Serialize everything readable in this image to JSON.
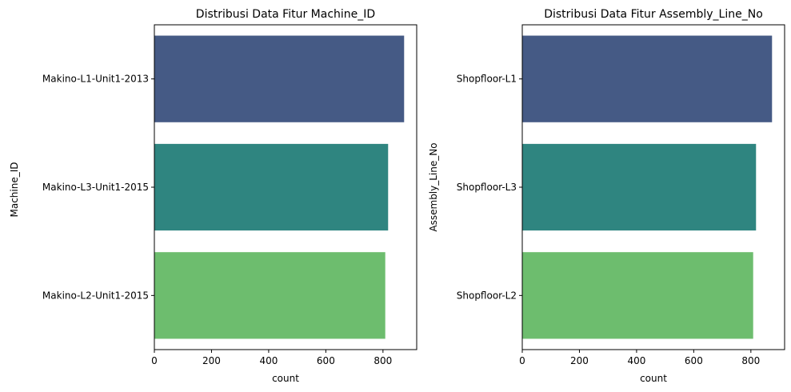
{
  "chart_data": [
    {
      "type": "bar",
      "orientation": "horizontal",
      "title": "Distribusi Data Fitur Machine_ID",
      "xlabel": "count",
      "ylabel": "Machine_ID",
      "categories": [
        "Makino-L1-Unit1-2013",
        "Makino-L3-Unit1-2015",
        "Makino-L2-Unit1-2015"
      ],
      "values": [
        874,
        818,
        808
      ],
      "xlim": [
        0,
        918
      ],
      "xticks": [
        0,
        200,
        400,
        600,
        800
      ],
      "colors": [
        "#455a85",
        "#2f8580",
        "#6dbd6e"
      ],
      "grid": false
    },
    {
      "type": "bar",
      "orientation": "horizontal",
      "title": "Distribusi Data Fitur Assembly_Line_No",
      "xlabel": "count",
      "ylabel": "Assembly_Line_No",
      "categories": [
        "Shopfloor-L1",
        "Shopfloor-L3",
        "Shopfloor-L2"
      ],
      "values": [
        874,
        818,
        808
      ],
      "xlim": [
        0,
        918
      ],
      "xticks": [
        0,
        200,
        400,
        600,
        800
      ],
      "colors": [
        "#455a85",
        "#2f8580",
        "#6dbd6e"
      ],
      "grid": false
    }
  ]
}
